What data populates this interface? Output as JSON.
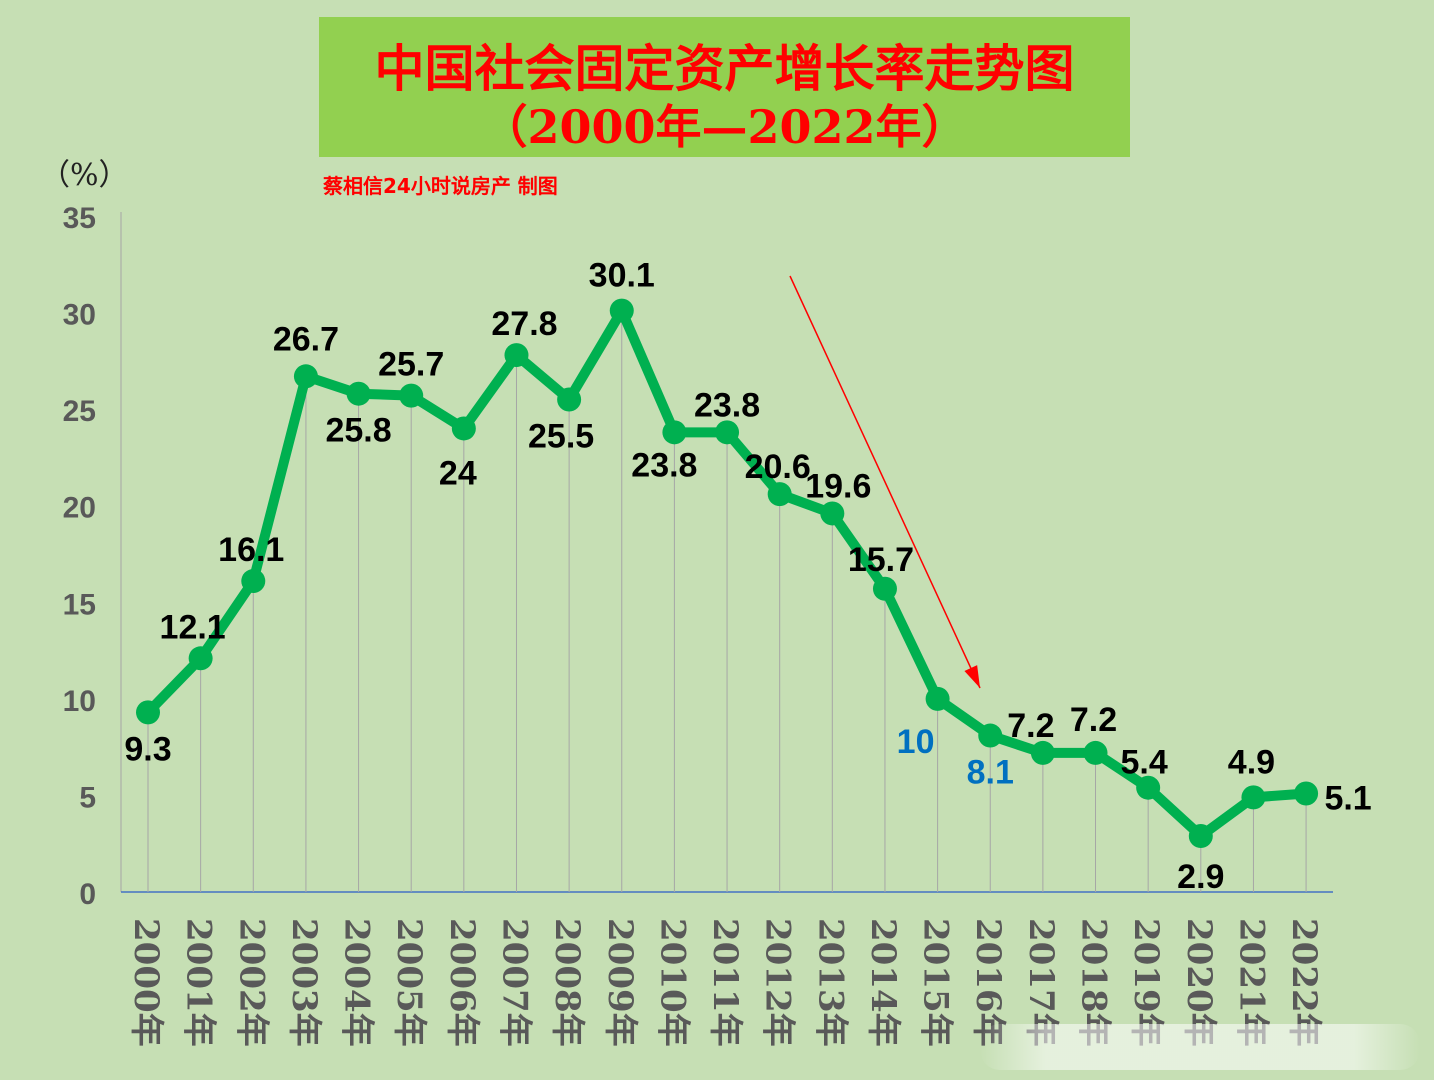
{
  "title": {
    "line1": "中国社会固定资产增长率走势图",
    "line2": "（2000年—2022年）"
  },
  "unit": "（%）",
  "credit": "蔡相信24小时说房产  制图",
  "chart_data": {
    "type": "line",
    "x": [
      "2000年",
      "2001年",
      "2002年",
      "2003年",
      "2004年",
      "2005年",
      "2006年",
      "2007年",
      "2008年",
      "2009年",
      "2010年",
      "2011年",
      "2012年",
      "2013年",
      "2014年",
      "2015年",
      "2016年",
      "2017年",
      "2018年",
      "2019年",
      "2020年",
      "2021年",
      "2022年"
    ],
    "series": [
      {
        "values": [
          9.3,
          12.1,
          16.1,
          26.7,
          25.8,
          25.7,
          24,
          27.8,
          25.5,
          30.1,
          23.8,
          23.8,
          20.6,
          19.6,
          15.7,
          10,
          8.1,
          7.2,
          7.2,
          5.4,
          2.9,
          4.9,
          5.1
        ],
        "labels": [
          "9.3",
          "12.1",
          "16.1",
          "26.7",
          "25.8",
          "25.7",
          "24",
          "27.8",
          "25.5",
          "30.1",
          "23.8",
          "23.8",
          "20.6",
          "19.6",
          "15.7",
          "10",
          "8.1",
          "7.2",
          "7.2",
          "5.4",
          "2.9",
          "4.9",
          "5.1"
        ],
        "color": "#00b050"
      }
    ],
    "highlight_labels": [
      15,
      16
    ],
    "highlight_color": "#0070c0",
    "label_color": "#000000",
    "ylim": [
      0,
      35
    ],
    "yticks": [
      0,
      5,
      10,
      15,
      20,
      25,
      30,
      35
    ],
    "grid": "vertical drop lines",
    "annotation": "red downward arrow from 2012 to 2016"
  }
}
